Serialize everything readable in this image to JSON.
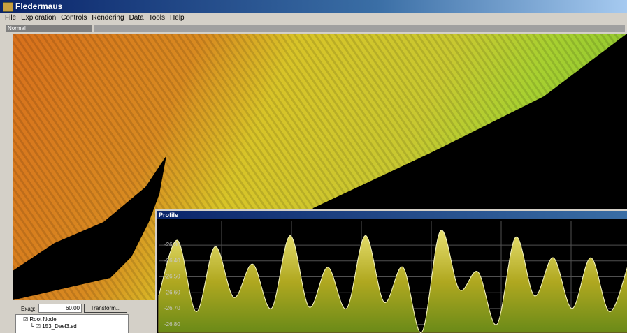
{
  "window": {
    "title": "Fledermaus"
  },
  "menu": [
    "File",
    "Exploration",
    "Controls",
    "Rendering",
    "Data",
    "Tools",
    "Help"
  ],
  "toolbar": {
    "mode": "Normal"
  },
  "panel": {
    "exag_label": "Exag:",
    "exag_value": "60.00",
    "button": "Transform...",
    "tree": [
      "Root Node",
      "153_Deel3.sd"
    ]
  },
  "profile": {
    "type": "area",
    "title": "Profile",
    "ylim": [
      -26.85,
      -26.15
    ],
    "yticks": [
      {
        "value": -26.3,
        "label": "-26.30"
      },
      {
        "value": -26.4,
        "label": "-26.40"
      },
      {
        "value": -26.5,
        "label": "-26.50"
      },
      {
        "value": -26.6,
        "label": "-26.60"
      },
      {
        "value": -26.7,
        "label": "-26.70"
      },
      {
        "value": -26.8,
        "label": "-26.80"
      }
    ],
    "grid": true,
    "color": "#c8c040",
    "values": [
      -26.62,
      -26.27,
      -26.72,
      -26.31,
      -26.63,
      -26.42,
      -26.7,
      -26.24,
      -26.69,
      -26.44,
      -26.7,
      -26.24,
      -26.66,
      -26.44,
      -26.85,
      -26.21,
      -26.58,
      -26.47,
      -26.8,
      -26.25,
      -26.62,
      -26.38,
      -26.7,
      -26.38,
      -26.72,
      -26.42
    ]
  }
}
